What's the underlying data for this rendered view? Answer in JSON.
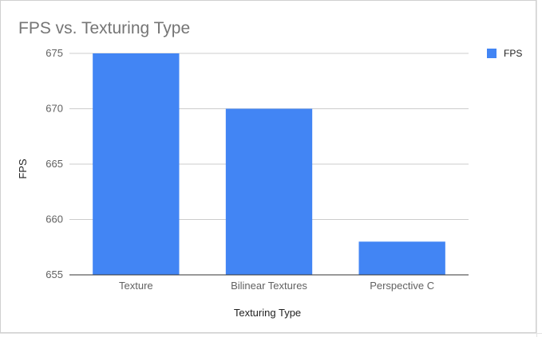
{
  "chart_data": {
    "type": "bar",
    "title": "FPS vs. Texturing Type",
    "xlabel": "Texturing Type",
    "ylabel": "FPS",
    "categories": [
      "Texture",
      "Bilinear Textures",
      "Perspective C"
    ],
    "series": [
      {
        "name": "FPS",
        "values": [
          675,
          670,
          658
        ],
        "color": "#4285f4"
      }
    ],
    "ylim": [
      655,
      675
    ],
    "yticks": [
      655,
      660,
      665,
      670,
      675
    ],
    "grid": true,
    "legend": "top-right"
  }
}
